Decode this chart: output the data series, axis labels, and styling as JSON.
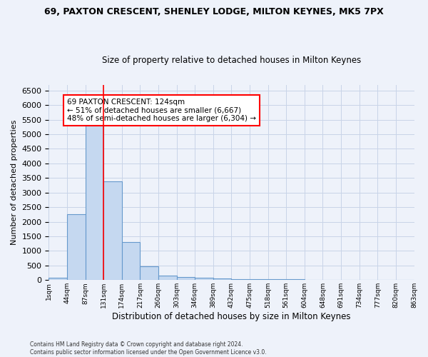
{
  "title1": "69, PAXTON CRESCENT, SHENLEY LODGE, MILTON KEYNES, MK5 7PX",
  "title2": "Size of property relative to detached houses in Milton Keynes",
  "xlabel": "Distribution of detached houses by size in Milton Keynes",
  "ylabel": "Number of detached properties",
  "footer": "Contains HM Land Registry data © Crown copyright and database right 2024.\nContains public sector information licensed under the Open Government Licence v3.0.",
  "bin_labels": [
    "1sqm",
    "44sqm",
    "87sqm",
    "131sqm",
    "174sqm",
    "217sqm",
    "260sqm",
    "303sqm",
    "346sqm",
    "389sqm",
    "432sqm",
    "475sqm",
    "518sqm",
    "561sqm",
    "604sqm",
    "648sqm",
    "691sqm",
    "734sqm",
    "777sqm",
    "820sqm",
    "863sqm"
  ],
  "bar_heights": [
    75,
    2270,
    5450,
    3380,
    1310,
    480,
    160,
    100,
    70,
    50,
    40,
    35,
    30,
    20,
    15,
    10,
    8,
    5,
    3,
    2
  ],
  "bar_color": "#c5d8f0",
  "bar_edge_color": "#6699cc",
  "grid_color": "#c8d4e8",
  "vline_bin": 3,
  "vline_color": "red",
  "annotation_text": "69 PAXTON CRESCENT: 124sqm\n← 51% of detached houses are smaller (6,667)\n48% of semi-detached houses are larger (6,304) →",
  "annotation_box_color": "white",
  "annotation_box_edge": "red",
  "ylim": [
    0,
    6700
  ],
  "yticks": [
    0,
    500,
    1000,
    1500,
    2000,
    2500,
    3000,
    3500,
    4000,
    4500,
    5000,
    5500,
    6000,
    6500
  ],
  "bg_color": "#eef2fa",
  "plot_bg_color": "#eef2fa"
}
